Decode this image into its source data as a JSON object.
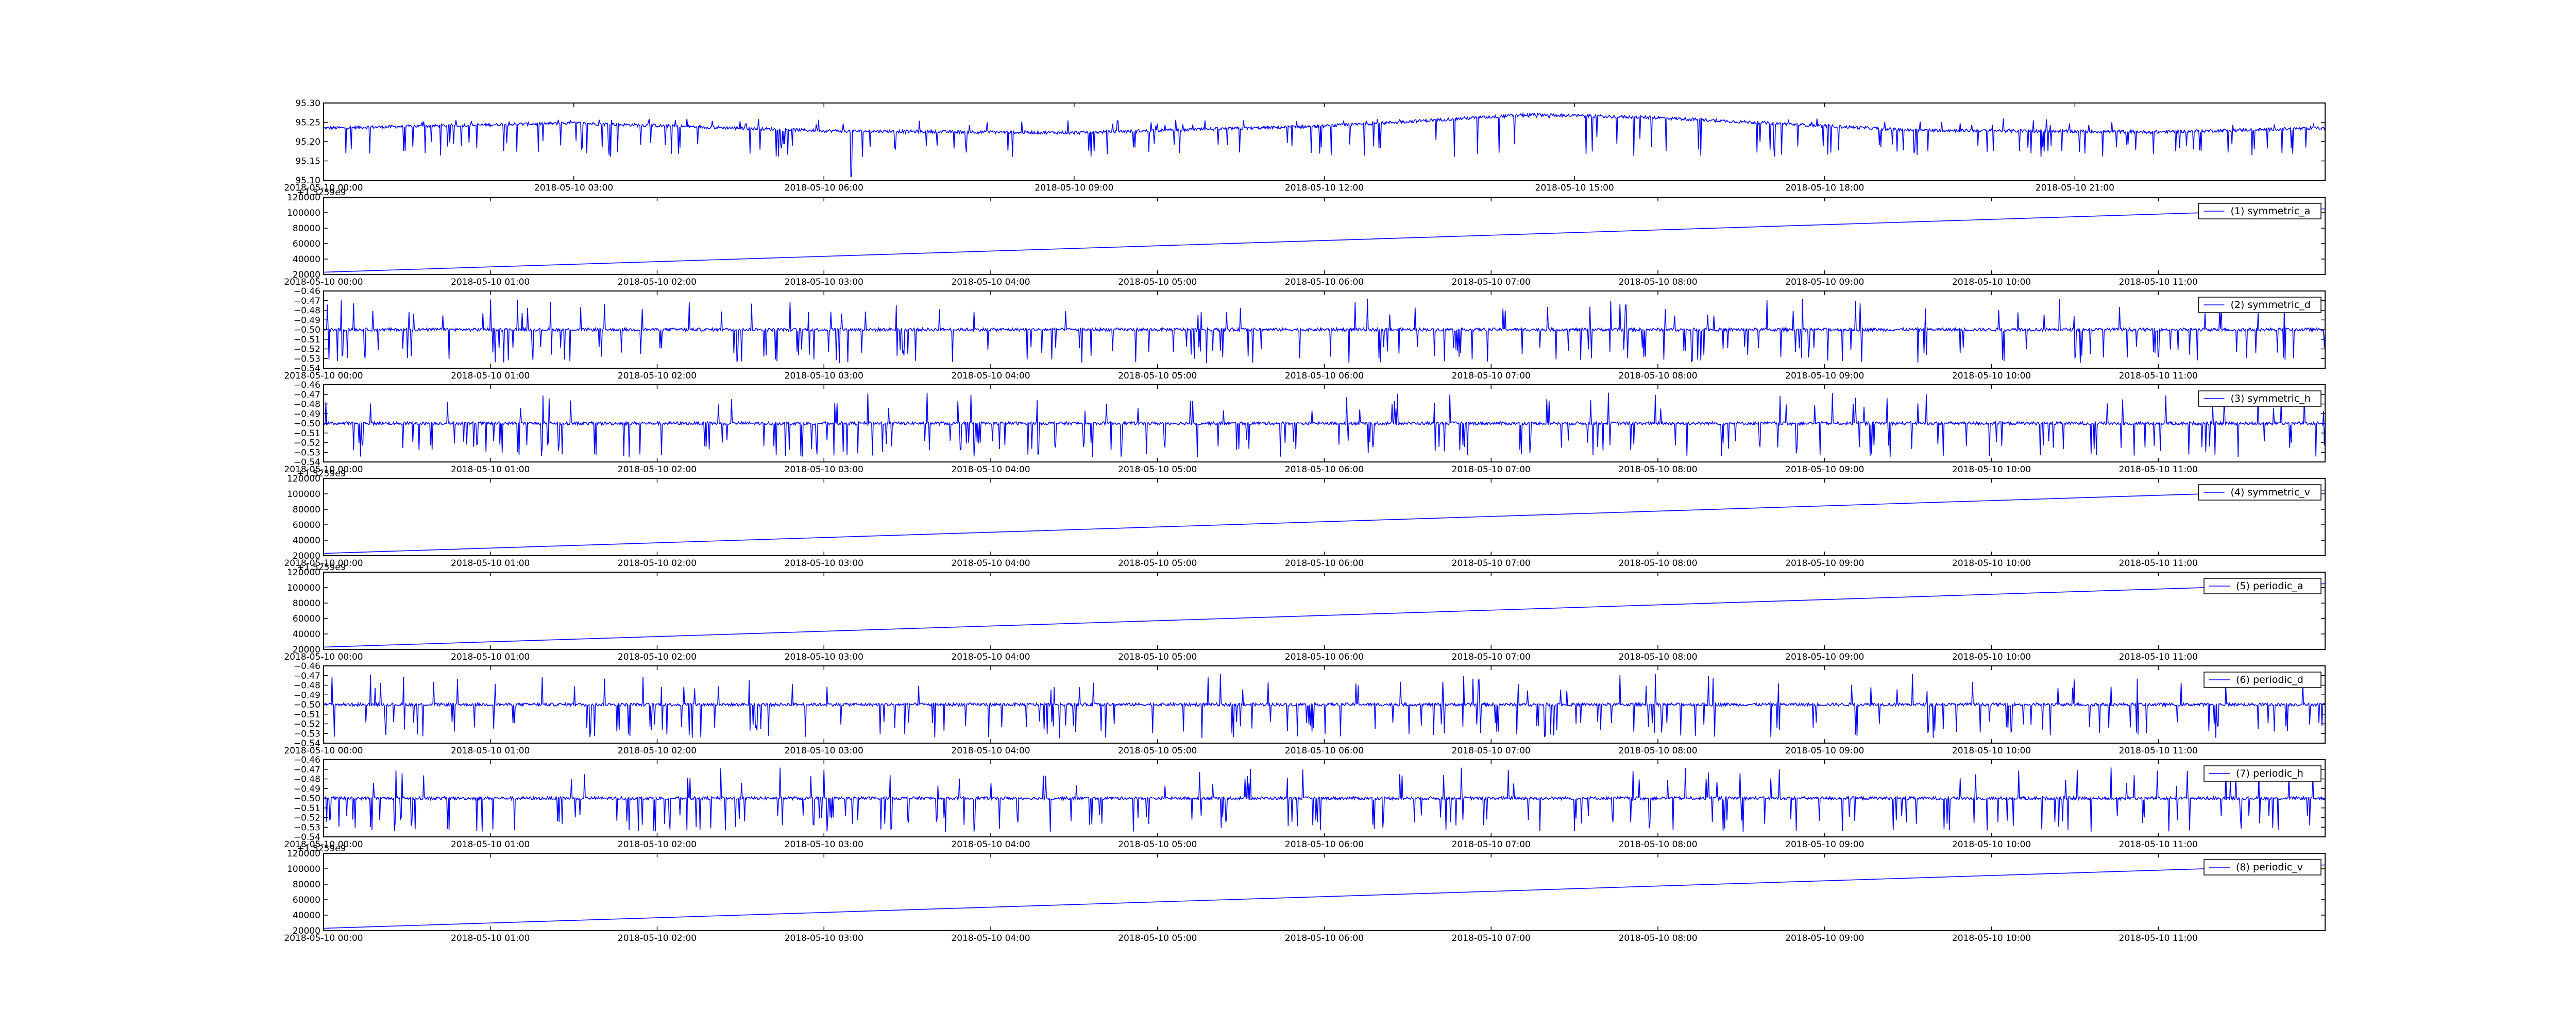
{
  "figure": {
    "background": "#ffffff",
    "line_color": "#0000ff",
    "axis_color": "#000000"
  },
  "chart_data": [
    {
      "type": "line",
      "legend": "",
      "offset_label": "",
      "y_tick_labels": [
        "95.10",
        "95.15",
        "95.20",
        "95.25",
        "95.30"
      ],
      "ylim": [
        95.1,
        95.3
      ],
      "x_tick_labels": [
        "2018-05-10 00:00",
        "2018-05-10 03:00",
        "2018-05-10 06:00",
        "2018-05-10 09:00",
        "2018-05-10 12:00",
        "2018-05-10 15:00",
        "2018-05-10 18:00",
        "2018-05-10 21:00"
      ],
      "xlim_hours": [
        0,
        24
      ],
      "signal": {
        "kind": "noisy",
        "baseline": [
          [
            0,
            95.235
          ],
          [
            3,
            95.248
          ],
          [
            6,
            95.228
          ],
          [
            9,
            95.223
          ],
          [
            12,
            95.24
          ],
          [
            14.5,
            95.27
          ],
          [
            16,
            95.262
          ],
          [
            19,
            95.23
          ],
          [
            22,
            95.225
          ],
          [
            24,
            95.235
          ]
        ],
        "spike_low": 95.16,
        "spike_high": 95.26,
        "notes": "sharp dip to ~95.11 near 06:20"
      }
    },
    {
      "type": "line",
      "legend": "(1) symmetric_a",
      "offset_label": "+1.5259e9",
      "y_tick_labels": [
        "20000",
        "40000",
        "60000",
        "80000",
        "100000",
        "120000"
      ],
      "ylim": [
        20000,
        120000
      ],
      "x_tick_labels": [
        "2018-05-10 00:00",
        "2018-05-10 01:00",
        "2018-05-10 02:00",
        "2018-05-10 03:00",
        "2018-05-10 04:00",
        "2018-05-10 05:00",
        "2018-05-10 06:00",
        "2018-05-10 07:00",
        "2018-05-10 08:00",
        "2018-05-10 09:00",
        "2018-05-10 10:00",
        "2018-05-10 11:00"
      ],
      "xlim_hours": [
        0,
        12
      ],
      "signal": {
        "kind": "linear",
        "x": [
          0,
          12
        ],
        "y": [
          23000,
          105000
        ]
      }
    },
    {
      "type": "line",
      "legend": "(2) symmetric_d",
      "offset_label": "",
      "y_tick_labels": [
        "−0.54",
        "−0.53",
        "−0.52",
        "−0.51",
        "−0.50",
        "−0.49",
        "−0.48",
        "−0.47",
        "−0.46"
      ],
      "ylim": [
        -0.54,
        -0.46
      ],
      "x_tick_labels": [
        "2018-05-10 00:00",
        "2018-05-10 01:00",
        "2018-05-10 02:00",
        "2018-05-10 03:00",
        "2018-05-10 04:00",
        "2018-05-10 05:00",
        "2018-05-10 06:00",
        "2018-05-10 07:00",
        "2018-05-10 08:00",
        "2018-05-10 09:00",
        "2018-05-10 10:00",
        "2018-05-10 11:00"
      ],
      "xlim_hours": [
        0,
        12
      ],
      "signal": {
        "kind": "noisy",
        "baseline": [
          [
            0,
            -0.5
          ],
          [
            12,
            -0.5
          ]
        ],
        "spike_low": -0.535,
        "spike_high": -0.468
      }
    },
    {
      "type": "line",
      "legend": "(3) symmetric_h",
      "offset_label": "",
      "y_tick_labels": [
        "−0.54",
        "−0.53",
        "−0.52",
        "−0.51",
        "−0.50",
        "−0.49",
        "−0.48",
        "−0.47",
        "−0.46"
      ],
      "ylim": [
        -0.54,
        -0.46
      ],
      "x_tick_labels": [
        "2018-05-10 00:00",
        "2018-05-10 01:00",
        "2018-05-10 02:00",
        "2018-05-10 03:00",
        "2018-05-10 04:00",
        "2018-05-10 05:00",
        "2018-05-10 06:00",
        "2018-05-10 07:00",
        "2018-05-10 08:00",
        "2018-05-10 09:00",
        "2018-05-10 10:00",
        "2018-05-10 11:00"
      ],
      "xlim_hours": [
        0,
        12
      ],
      "signal": {
        "kind": "noisy",
        "baseline": [
          [
            0,
            -0.5
          ],
          [
            12,
            -0.5
          ]
        ],
        "spike_low": -0.535,
        "spike_high": -0.468
      }
    },
    {
      "type": "line",
      "legend": "(4) symmetric_v",
      "offset_label": "+1.5259e9",
      "y_tick_labels": [
        "20000",
        "40000",
        "60000",
        "80000",
        "100000",
        "120000"
      ],
      "ylim": [
        20000,
        120000
      ],
      "x_tick_labels": [
        "2018-05-10 00:00",
        "2018-05-10 01:00",
        "2018-05-10 02:00",
        "2018-05-10 03:00",
        "2018-05-10 04:00",
        "2018-05-10 05:00",
        "2018-05-10 06:00",
        "2018-05-10 07:00",
        "2018-05-10 08:00",
        "2018-05-10 09:00",
        "2018-05-10 10:00",
        "2018-05-10 11:00"
      ],
      "xlim_hours": [
        0,
        12
      ],
      "signal": {
        "kind": "linear",
        "x": [
          0,
          12
        ],
        "y": [
          23000,
          105000
        ]
      }
    },
    {
      "type": "line",
      "legend": "(5) periodic_a",
      "offset_label": "+1.5259e9",
      "y_tick_labels": [
        "20000",
        "40000",
        "60000",
        "80000",
        "100000",
        "120000"
      ],
      "ylim": [
        20000,
        120000
      ],
      "x_tick_labels": [
        "2018-05-10 00:00",
        "2018-05-10 01:00",
        "2018-05-10 02:00",
        "2018-05-10 03:00",
        "2018-05-10 04:00",
        "2018-05-10 05:00",
        "2018-05-10 06:00",
        "2018-05-10 07:00",
        "2018-05-10 08:00",
        "2018-05-10 09:00",
        "2018-05-10 10:00",
        "2018-05-10 11:00"
      ],
      "xlim_hours": [
        0,
        12
      ],
      "signal": {
        "kind": "linear",
        "x": [
          0,
          12
        ],
        "y": [
          23000,
          105000
        ]
      }
    },
    {
      "type": "line",
      "legend": "(6) periodic_d",
      "offset_label": "",
      "y_tick_labels": [
        "−0.54",
        "−0.53",
        "−0.52",
        "−0.51",
        "−0.50",
        "−0.49",
        "−0.48",
        "−0.47",
        "−0.46"
      ],
      "ylim": [
        -0.54,
        -0.46
      ],
      "x_tick_labels": [
        "2018-05-10 00:00",
        "2018-05-10 01:00",
        "2018-05-10 02:00",
        "2018-05-10 03:00",
        "2018-05-10 04:00",
        "2018-05-10 05:00",
        "2018-05-10 06:00",
        "2018-05-10 07:00",
        "2018-05-10 08:00",
        "2018-05-10 09:00",
        "2018-05-10 10:00",
        "2018-05-10 11:00"
      ],
      "xlim_hours": [
        0,
        12
      ],
      "signal": {
        "kind": "noisy",
        "baseline": [
          [
            0,
            -0.5
          ],
          [
            12,
            -0.5
          ]
        ],
        "spike_low": -0.535,
        "spike_high": -0.468
      }
    },
    {
      "type": "line",
      "legend": "(7) periodic_h",
      "offset_label": "",
      "y_tick_labels": [
        "−0.54",
        "−0.53",
        "−0.52",
        "−0.51",
        "−0.50",
        "−0.49",
        "−0.48",
        "−0.47",
        "−0.46"
      ],
      "ylim": [
        -0.54,
        -0.46
      ],
      "x_tick_labels": [
        "2018-05-10 00:00",
        "2018-05-10 01:00",
        "2018-05-10 02:00",
        "2018-05-10 03:00",
        "2018-05-10 04:00",
        "2018-05-10 05:00",
        "2018-05-10 06:00",
        "2018-05-10 07:00",
        "2018-05-10 08:00",
        "2018-05-10 09:00",
        "2018-05-10 10:00",
        "2018-05-10 11:00"
      ],
      "xlim_hours": [
        0,
        12
      ],
      "signal": {
        "kind": "noisy",
        "baseline": [
          [
            0,
            -0.5
          ],
          [
            12,
            -0.5
          ]
        ],
        "spike_low": -0.535,
        "spike_high": -0.468
      }
    },
    {
      "type": "line",
      "legend": "(8) periodic_v",
      "offset_label": "+1.5259e9",
      "y_tick_labels": [
        "20000",
        "40000",
        "60000",
        "80000",
        "100000",
        "120000"
      ],
      "ylim": [
        20000,
        120000
      ],
      "x_tick_labels": [
        "2018-05-10 00:00",
        "2018-05-10 01:00",
        "2018-05-10 02:00",
        "2018-05-10 03:00",
        "2018-05-10 04:00",
        "2018-05-10 05:00",
        "2018-05-10 06:00",
        "2018-05-10 07:00",
        "2018-05-10 08:00",
        "2018-05-10 09:00",
        "2018-05-10 10:00",
        "2018-05-10 11:00"
      ],
      "xlim_hours": [
        0,
        12
      ],
      "signal": {
        "kind": "linear",
        "x": [
          0,
          12
        ],
        "y": [
          23000,
          105000
        ]
      }
    }
  ]
}
